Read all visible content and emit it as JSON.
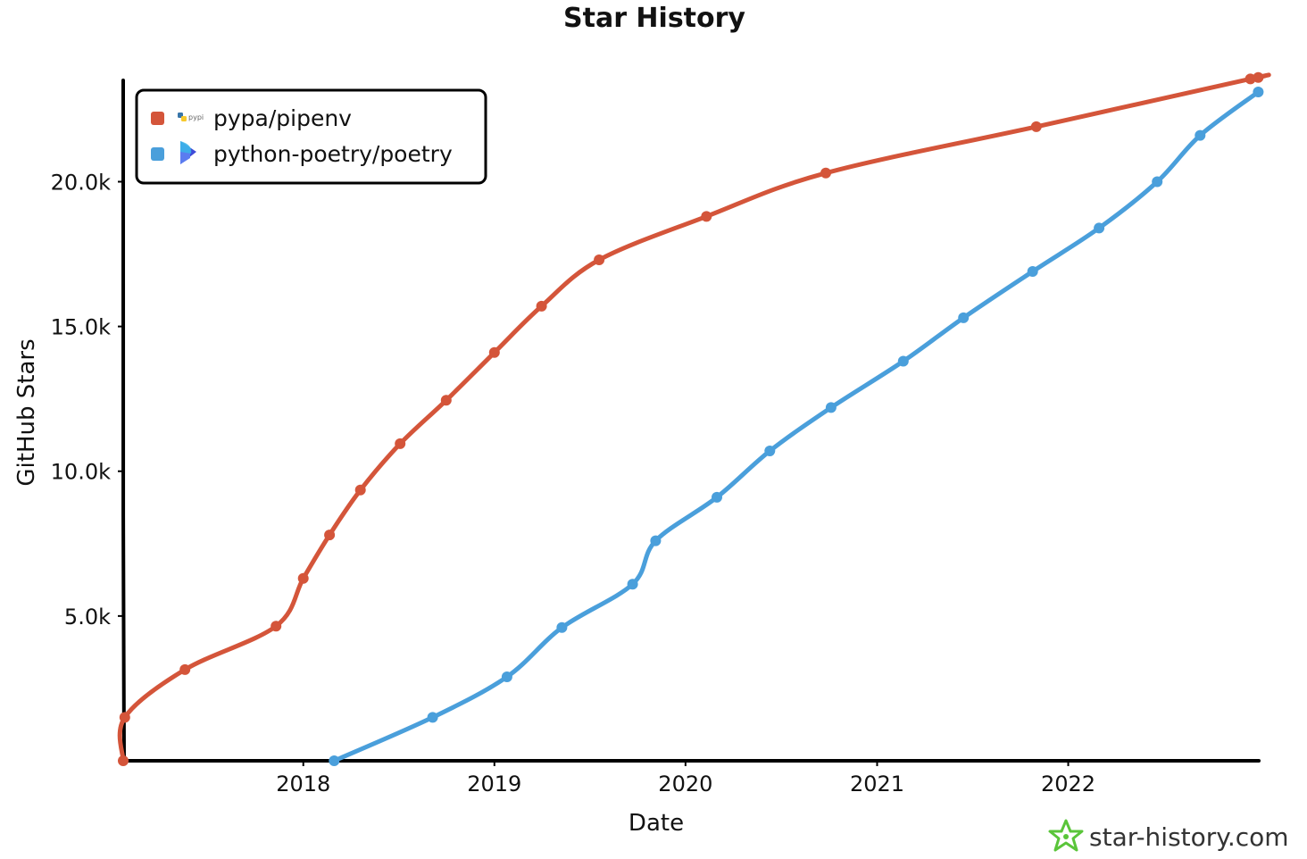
{
  "chart_data": {
    "type": "line",
    "title": "Star History",
    "xlabel": "Date",
    "ylabel": "GitHub Stars",
    "xlim": [
      "2017-01-22",
      "2022-12-31"
    ],
    "ylim": [
      0,
      23500
    ],
    "x_ticks": [
      {
        "date": "2018-01-01",
        "label": "2018"
      },
      {
        "date": "2019-01-01",
        "label": "2019"
      },
      {
        "date": "2020-01-01",
        "label": "2020"
      },
      {
        "date": "2021-01-01",
        "label": "2021"
      },
      {
        "date": "2022-01-01",
        "label": "2022"
      }
    ],
    "y_ticks": [
      {
        "value": 5000,
        "label": "5.0k"
      },
      {
        "value": 10000,
        "label": "10.0k"
      },
      {
        "value": 15000,
        "label": "15.0k"
      },
      {
        "value": 20000,
        "label": "20.0k"
      }
    ],
    "grid": false,
    "legend_position": "top-left",
    "series": [
      {
        "name": "pypa/pipenv",
        "color": "#d4553a",
        "icon": "pypi-logo-icon",
        "points": [
          [
            "2017-01-22",
            0
          ],
          [
            "2017-01-25",
            1500
          ],
          [
            "2017-05-20",
            3150
          ],
          [
            "2017-11-10",
            4650
          ],
          [
            "2018-01-01",
            6300
          ],
          [
            "2018-02-20",
            7800
          ],
          [
            "2018-04-20",
            9350
          ],
          [
            "2018-07-05",
            10950
          ],
          [
            "2018-10-01",
            12450
          ],
          [
            "2019-01-01",
            14100
          ],
          [
            "2019-04-01",
            15700
          ],
          [
            "2019-07-20",
            17300
          ],
          [
            "2020-02-10",
            18800
          ],
          [
            "2020-09-25",
            20300
          ],
          [
            "2021-11-01",
            21900
          ],
          [
            "2022-12-15",
            23550
          ],
          [
            "2022-12-30",
            23600
          ]
        ]
      },
      {
        "name": "python-poetry/poetry",
        "color": "#4a9fdb",
        "icon": "poetry-logo-icon",
        "points": [
          [
            "2018-03-01",
            0
          ],
          [
            "2018-09-05",
            1500
          ],
          [
            "2019-01-25",
            2900
          ],
          [
            "2019-05-10",
            4600
          ],
          [
            "2019-09-22",
            6100
          ],
          [
            "2019-11-05",
            7600
          ],
          [
            "2020-03-01",
            9100
          ],
          [
            "2020-06-10",
            10700
          ],
          [
            "2020-10-05",
            12200
          ],
          [
            "2021-02-20",
            13800
          ],
          [
            "2021-06-15",
            15300
          ],
          [
            "2021-10-25",
            16900
          ],
          [
            "2022-03-01",
            18400
          ],
          [
            "2022-06-20",
            20000
          ],
          [
            "2022-09-10",
            21600
          ],
          [
            "2022-12-30",
            23100
          ]
        ]
      }
    ]
  },
  "watermark": {
    "text": "star-history.com",
    "icon": "star-logo-icon",
    "color": "#5ac53a"
  }
}
